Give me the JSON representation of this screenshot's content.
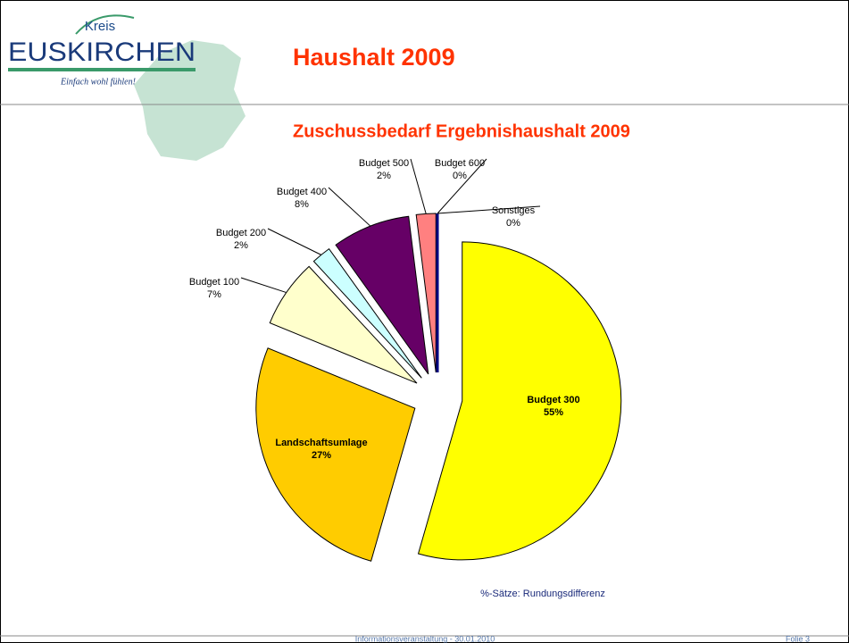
{
  "logo": {
    "top": "Kreis",
    "name": "EUSKIRCHEN",
    "slogan": "Einfach wohl fühlen!"
  },
  "header": {
    "title": "Haushalt 2009"
  },
  "chart_data": {
    "type": "pie",
    "title": "Zuschussbedarf Ergebnishaushalt 2009",
    "categories": [
      "Budget 300",
      "Landschaftsumlage",
      "Budget 100",
      "Budget 200",
      "Budget 400",
      "Budget 500",
      "Budget 600",
      "Sonstiges"
    ],
    "values": [
      55,
      27,
      7,
      2,
      8,
      2,
      0,
      0
    ],
    "value_labels": [
      "55%",
      "27%",
      "7%",
      "2%",
      "8%",
      "2%",
      "0%",
      "0%"
    ],
    "colors": [
      "#ffff00",
      "#ffcc00",
      "#ffffcc",
      "#ccffff",
      "#660066",
      "#ff8080",
      "#0066cc",
      "#000080"
    ],
    "note": "%-Sätze: Rundungsdifferenz"
  },
  "footer": {
    "text": "Informationsveranstaltung - 30.01.2010",
    "page": "Folie 3"
  }
}
